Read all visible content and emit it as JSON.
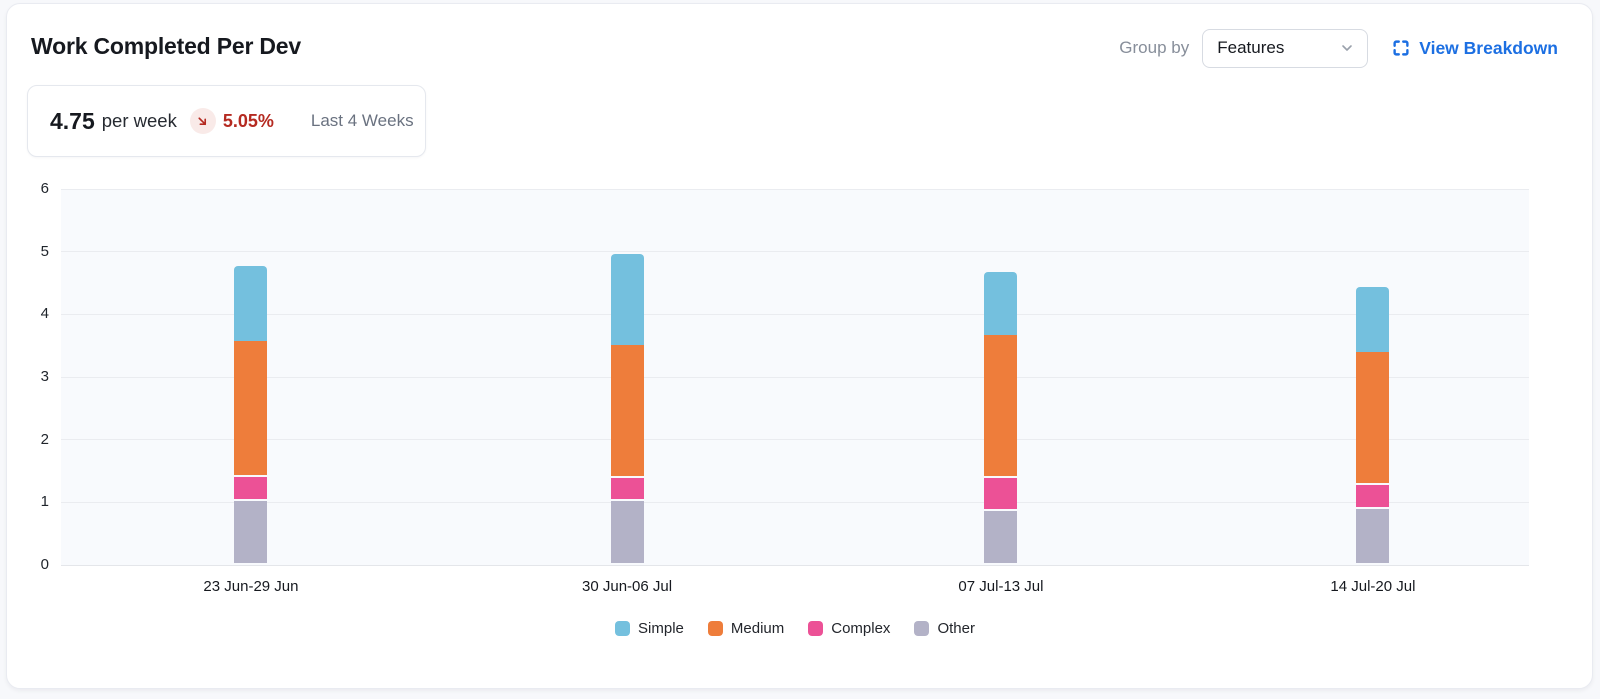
{
  "header": {
    "title": "Work Completed Per Dev",
    "group_by_label": "Group by",
    "group_by_value": "Features",
    "view_breakdown_label": "View Breakdown"
  },
  "stat": {
    "value": "4.75",
    "unit": "per week",
    "delta": "5.05%",
    "delta_direction": "down",
    "period": "Last 4 Weeks"
  },
  "colors": {
    "accent_blue": "#1c6fe2",
    "delta_red": "#b52a21",
    "delta_badge_bg": "#f9eae8",
    "plot_background": "#f8fafd",
    "gridline": "#eaecf0"
  },
  "chart_data": {
    "type": "bar",
    "stacked": true,
    "title": "Work Completed Per Dev",
    "xlabel": "",
    "ylabel": "",
    "categories": [
      "23 Jun-29 Jun",
      "30 Jun-06 Jul",
      "07 Jul-13 Jul",
      "14 Jul-20 Jul"
    ],
    "series": [
      {
        "name": "Simple",
        "color": "#74c0de",
        "values": [
          1.19,
          1.45,
          1.01,
          1.04
        ]
      },
      {
        "name": "Medium",
        "color": "#ee7d3b",
        "values": [
          2.17,
          2.12,
          2.28,
          2.13
        ]
      },
      {
        "name": "Complex",
        "color": "#ec5196",
        "values": [
          0.39,
          0.37,
          0.53,
          0.37
        ]
      },
      {
        "name": "Other",
        "color": "#b3b2c7",
        "values": [
          1.02,
          1.02,
          0.86,
          0.9
        ]
      }
    ],
    "stack_order_bottom_to_top": [
      "Other",
      "Complex",
      "Medium",
      "Simple"
    ],
    "totals": [
      4.77,
      4.96,
      4.68,
      4.44
    ],
    "ylim": [
      0,
      6
    ],
    "y_ticks": [
      0,
      1,
      2,
      3,
      4,
      5,
      6
    ],
    "grid": true,
    "legend_position": "bottom"
  }
}
